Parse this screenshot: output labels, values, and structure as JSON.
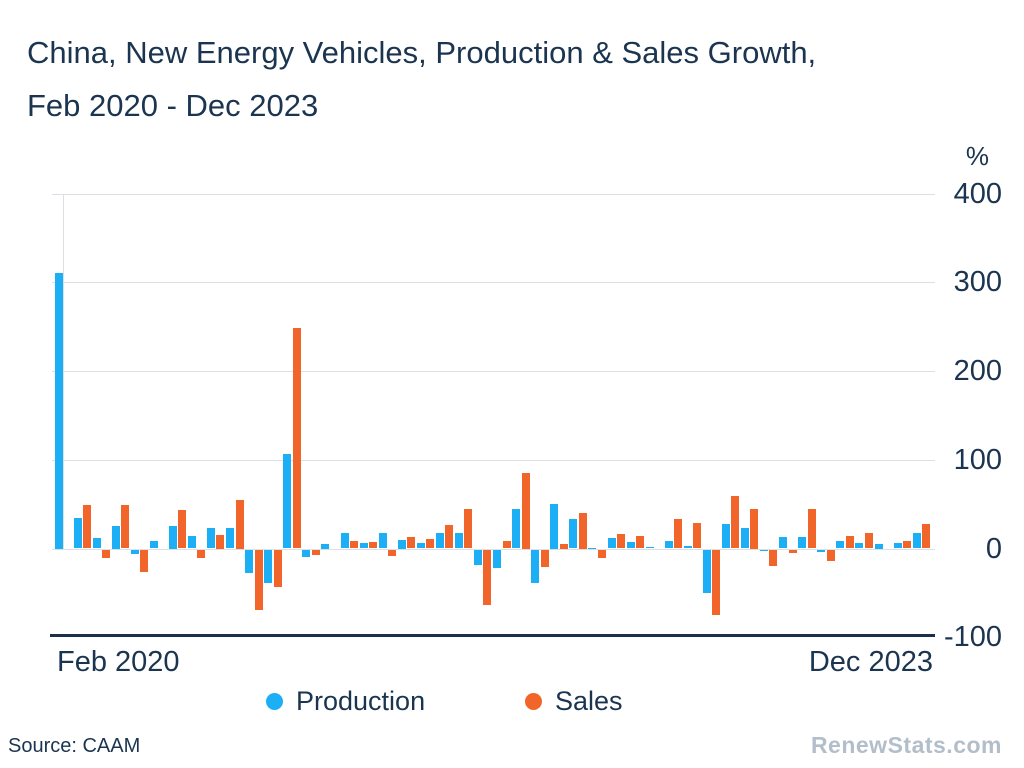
{
  "title": {
    "line1": "China, New Energy Vehicles, Production & Sales Growth,",
    "line2": "Feb 2020 - Dec 2023"
  },
  "y_axis": {
    "unit_label": "%",
    "ticks": [
      400,
      300,
      200,
      100,
      0,
      -100
    ],
    "min": -100,
    "max": 400
  },
  "x_axis": {
    "start_label": "Feb 2020",
    "end_label": "Dec 2023"
  },
  "legend": [
    {
      "label": "Production",
      "color": "#1CAFF5"
    },
    {
      "label": "Sales",
      "color": "#F2652A"
    }
  ],
  "footer": {
    "source": "Source: CAAM",
    "watermark": "RenewStats.com"
  },
  "colors": {
    "text_navy": "#1B3550",
    "axis_line": "#1C3049",
    "gridline": "#DCE0E5",
    "production_blue": "#1CAFF5",
    "sales_orange": "#F2652A",
    "watermark_gray": "#B2BEC9",
    "background": "#FFFFFF"
  },
  "chart_data": {
    "type": "bar",
    "title": "China, New Energy Vehicles, Production & Sales Growth, Feb 2020 - Dec 2023",
    "xlabel": "",
    "ylabel": "%",
    "ylim": [
      -100,
      400
    ],
    "grid": true,
    "legend_position": "bottom",
    "categories": [
      "Feb 2020",
      "",
      "",
      "",
      "",
      "",
      "",
      "",
      "",
      "",
      "",
      "",
      "",
      "",
      "",
      "",
      "",
      "",
      "",
      "",
      "",
      "",
      "",
      "",
      "",
      "",
      "",
      "",
      "",
      "",
      "",
      "",
      "",
      "",
      "",
      "",
      "",
      "",
      "",
      "",
      "",
      "",
      "",
      "",
      "",
      "Dec 2023"
    ],
    "series": [
      {
        "name": "Production",
        "color": "#1CAFF5",
        "values": [
          310,
          34,
          12,
          25,
          -5,
          9,
          25,
          14,
          23,
          23,
          -27,
          -38,
          106,
          -9,
          5,
          18,
          6,
          18,
          10,
          6,
          17,
          17,
          -18,
          -21,
          44,
          -38,
          50,
          33,
          1,
          12,
          7,
          2,
          9,
          3,
          -49,
          28,
          23,
          -2,
          13,
          13,
          -3,
          8,
          6,
          5,
          6,
          17
        ]
      },
      {
        "name": "Sales",
        "color": "#F2652A",
        "values": [
          0,
          49,
          -10,
          49,
          -25,
          0,
          43,
          -10,
          15,
          55,
          -68,
          -42,
          249,
          -6,
          0,
          8,
          7,
          -7,
          13,
          11,
          27,
          44,
          -63,
          8,
          85,
          -20,
          5,
          40,
          -10,
          16,
          14,
          0,
          33,
          29,
          -74,
          59,
          45,
          -19,
          -4,
          44,
          -13,
          14,
          17,
          0,
          9,
          28
        ]
      }
    ]
  }
}
